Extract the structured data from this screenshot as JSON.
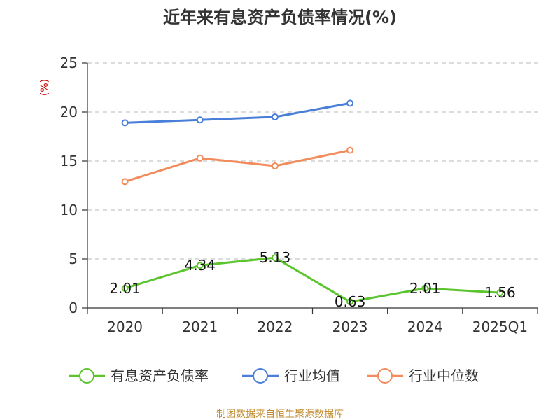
{
  "chart_data": {
    "type": "line",
    "title": "近年来有息资产负债率情况(%)",
    "ylabel": "(%)",
    "categories": [
      "2020",
      "2021",
      "2022",
      "2023",
      "2024",
      "2025Q1"
    ],
    "ylim": [
      0,
      25
    ],
    "yticks": [
      "0",
      "5",
      "10",
      "15",
      "20",
      "25"
    ],
    "grid": true,
    "legend_position": "bottom",
    "series": [
      {
        "name": "有息资产负债率",
        "color": "#5cc42d",
        "values": [
          2.01,
          4.34,
          5.13,
          0.63,
          2.01,
          1.56
        ],
        "labels": [
          "2.01",
          "4.34",
          "5.13",
          "0.63",
          "2.01",
          "1.56"
        ]
      },
      {
        "name": "行业均值",
        "color": "#4a7fd9",
        "values": [
          18.9,
          19.2,
          19.5,
          20.9,
          null,
          null
        ]
      },
      {
        "name": "行业中位数",
        "color": "#f28c5c",
        "values": [
          12.9,
          15.3,
          14.5,
          16.1,
          null,
          null
        ]
      }
    ]
  },
  "source": {
    "text": "制图数据来自恒生聚源数据库",
    "color": "#c08a2e"
  }
}
